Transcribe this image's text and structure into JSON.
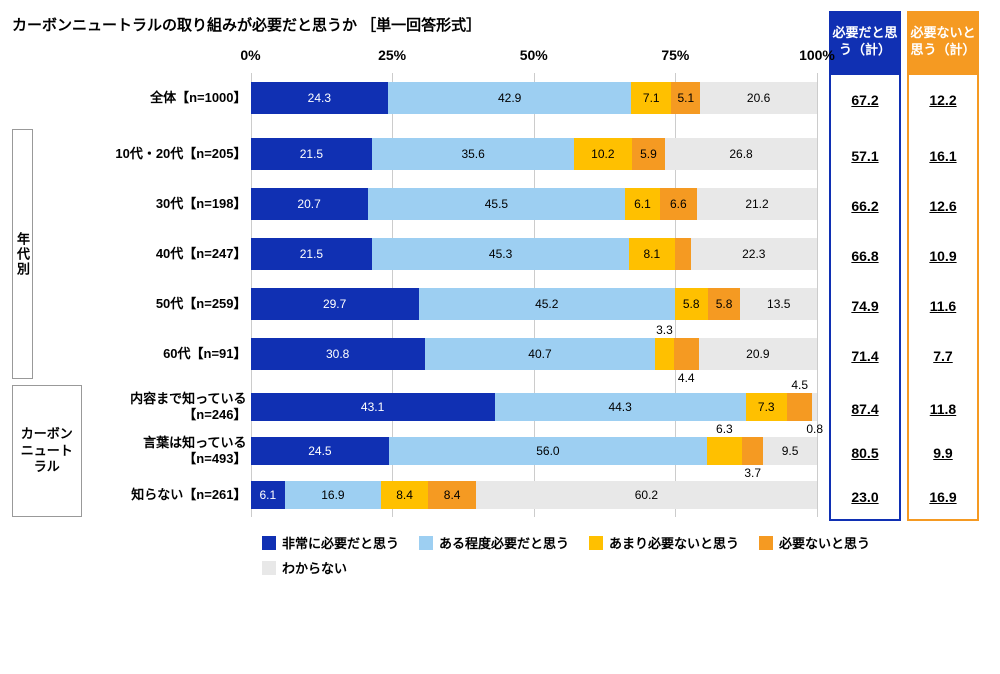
{
  "title": "カーボンニュートラルの取り組みが必要だと思うか ［単一回答形式］",
  "axis": {
    "ticks": [
      "0%",
      "25%",
      "50%",
      "75%",
      "100%"
    ],
    "positions": [
      0,
      25,
      50,
      75,
      100
    ]
  },
  "colors": {
    "c1": "#1030B3",
    "c2": "#9DCFF2",
    "c3": "#FFC000",
    "c4": "#F59A22",
    "c5": "#E8E8E8",
    "grid": "#cccccc",
    "blueBox": "#1030B3",
    "orangeBox": "#F59A22"
  },
  "legend": [
    {
      "label": "非常に必要だと思う",
      "color": "#1030B3"
    },
    {
      "label": "ある程度必要だと思う",
      "color": "#9DCFF2"
    },
    {
      "label": "あまり必要ないと思う",
      "color": "#FFC000"
    },
    {
      "label": "必要ないと思う",
      "color": "#F59A22"
    },
    {
      "label": "わからない",
      "color": "#E8E8E8"
    }
  ],
  "groups": [
    {
      "label": "",
      "horiz": false,
      "rows": 1
    },
    {
      "label": "年代別",
      "horiz": false,
      "rows": 5
    },
    {
      "label": "カーボンニュートラル",
      "horiz": true,
      "rows": 3
    }
  ],
  "totalsHead": {
    "blue": "必要だと思う（計）",
    "orange": "必要ないと思う（計）"
  },
  "rows": [
    {
      "label": "全体【n=1000】",
      "v": [
        24.3,
        42.9,
        7.1,
        5.1,
        20.6
      ],
      "blue": "67.2",
      "orange": "12.2",
      "ov": {}
    },
    {
      "label": "10代・20代【n=205】",
      "v": [
        21.5,
        35.6,
        10.2,
        5.9,
        26.8
      ],
      "blue": "57.1",
      "orange": "16.1",
      "ov": {}
    },
    {
      "label": "30代【n=198】",
      "v": [
        20.7,
        45.5,
        6.1,
        6.6,
        21.2
      ],
      "blue": "66.2",
      "orange": "12.6",
      "ov": {}
    },
    {
      "label": "40代【n=247】",
      "v": [
        21.5,
        45.3,
        8.1,
        2.8,
        22.3
      ],
      "blue": "66.8",
      "orange": "10.9",
      "ov": {
        "3": "2.8"
      }
    },
    {
      "label": "50代【n=259】",
      "v": [
        29.7,
        45.2,
        5.8,
        5.8,
        13.5
      ],
      "blue": "74.9",
      "orange": "11.6",
      "ov": {}
    },
    {
      "label": "60代【n=91】",
      "v": [
        30.8,
        40.7,
        3.3,
        4.4,
        20.9
      ],
      "blue": "71.4",
      "orange": "7.7",
      "ov": {
        "2": "top",
        "3": "bot"
      }
    },
    {
      "label": "内容まで知っている【n=246】",
      "v": [
        43.1,
        44.3,
        7.3,
        4.5,
        0.8
      ],
      "blue": "87.4",
      "orange": "11.8",
      "ov": {
        "3": "top",
        "4": "bot"
      },
      "slim": true
    },
    {
      "label": "言葉は知っている【n=493】",
      "v": [
        24.5,
        56.0,
        6.3,
        3.7,
        9.5
      ],
      "blue": "80.5",
      "orange": "9.9",
      "ov": {
        "2": "top",
        "3": "bot"
      },
      "slim": true
    },
    {
      "label": "知らない【n=261】",
      "v": [
        6.1,
        16.9,
        8.4,
        8.4,
        60.2
      ],
      "blue": "23.0",
      "orange": "16.9",
      "ov": {},
      "slim": true
    }
  ]
}
